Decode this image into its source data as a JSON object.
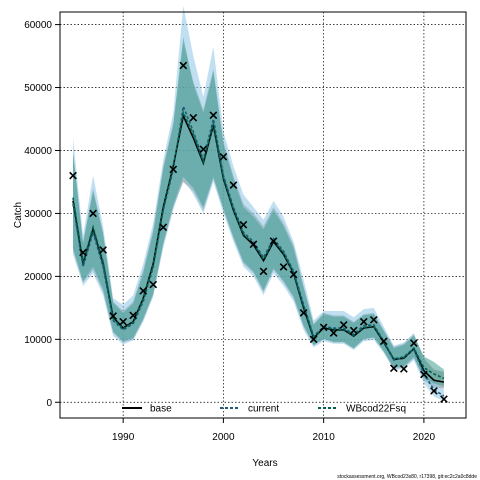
{
  "chart_data": {
    "type": "line",
    "xlabel": "Years",
    "ylabel": "Catch",
    "xlim": [
      1983.7,
      2024.2
    ],
    "ylim": [
      -2500,
      62000
    ],
    "xticks": [
      1990,
      2000,
      2010,
      2020
    ],
    "yticks": [
      0,
      10000,
      20000,
      30000,
      40000,
      50000,
      60000
    ],
    "grid": true,
    "legend_position": "bottom-center",
    "footnote": "stockassessment.org, WBcod23s80, r17398, git:ec2c2a0c8dde",
    "x": [
      1985,
      1986,
      1987,
      1988,
      1989,
      1990,
      1991,
      1992,
      1993,
      1994,
      1995,
      1996,
      1997,
      1998,
      1999,
      2000,
      2001,
      2002,
      2003,
      2004,
      2005,
      2006,
      2007,
      2008,
      2009,
      2010,
      2011,
      2012,
      2013,
      2014,
      2015,
      2016,
      2017,
      2018,
      2019,
      2020,
      2021,
      2022
    ],
    "observed": {
      "marker": "x",
      "x": [
        1985,
        1986,
        1987,
        1988,
        1989,
        1990,
        1991,
        1992,
        1993,
        1994,
        1995,
        1996,
        1997,
        1998,
        1999,
        2000,
        2001,
        2002,
        2003,
        2004,
        2005,
        2006,
        2007,
        2008,
        2009,
        2010,
        2011,
        2012,
        2013,
        2014,
        2015,
        2016,
        2017,
        2018,
        2019,
        2020,
        2021,
        2022
      ],
      "values": [
        36000,
        23800,
        30000,
        24200,
        13700,
        12800,
        13800,
        17700,
        18700,
        27800,
        37000,
        53500,
        45200,
        40200,
        45600,
        39000,
        34500,
        28200,
        25100,
        20800,
        25600,
        21500,
        20300,
        14200,
        10000,
        11900,
        11000,
        12300,
        11400,
        12800,
        13100,
        9700,
        5400,
        5300,
        9400,
        4400,
        1800,
        500
      ]
    },
    "series": [
      {
        "name": "base",
        "color": "#000000",
        "style": "solid",
        "band_color": "#808080",
        "values": [
          32000,
          22000,
          27500,
          22000,
          13500,
          11800,
          12800,
          16500,
          22000,
          31000,
          37500,
          45500,
          42000,
          38000,
          44000,
          35500,
          30500,
          26500,
          25000,
          22500,
          25500,
          23500,
          20500,
          15000,
          10200,
          11800,
          11500,
          11500,
          10500,
          11800,
          12000,
          9500,
          6800,
          7000,
          8500,
          5000,
          3500,
          3200
        ],
        "lower": [
          24000,
          19000,
          21000,
          17500,
          11000,
          9500,
          10000,
          13000,
          17000,
          25000,
          31000,
          35000,
          33500,
          30500,
          35500,
          30500,
          26000,
          22000,
          20500,
          17500,
          21000,
          19000,
          16500,
          12000,
          9000,
          10000,
          9500,
          9500,
          8500,
          10000,
          10200,
          8000,
          5300,
          5500,
          7000,
          3500,
          2300,
          2200
        ],
        "upper": [
          40000,
          25500,
          34000,
          27000,
          16000,
          14500,
          16000,
          21000,
          27500,
          37500,
          44500,
          57000,
          51000,
          46500,
          53000,
          41500,
          36000,
          31500,
          30000,
          28000,
          31000,
          28500,
          25000,
          18500,
          12500,
          14200,
          13800,
          13800,
          12800,
          14000,
          14200,
          11500,
          8800,
          9300,
          10800,
          7000,
          5200,
          4800
        ]
      },
      {
        "name": "current",
        "color": "#1f5c7a",
        "style": "dashed",
        "band_color": "#8cc7e6",
        "values": [
          31500,
          21500,
          27000,
          21500,
          13000,
          11500,
          12500,
          16000,
          21500,
          30500,
          37000,
          47000,
          43000,
          38500,
          45000,
          36000,
          31000,
          27000,
          25500,
          23000,
          26000,
          24000,
          20800,
          15500,
          10500,
          12000,
          11800,
          11800,
          10800,
          12200,
          12300,
          9700,
          6700,
          7100,
          8400,
          4500,
          2000,
          1000
        ],
        "lower": [
          23500,
          18500,
          20500,
          17000,
          10500,
          9200,
          9800,
          12800,
          16800,
          24500,
          30500,
          35500,
          33000,
          30000,
          35000,
          30000,
          25500,
          21500,
          20000,
          17000,
          20500,
          18500,
          16000,
          11500,
          8700,
          9700,
          9300,
          9300,
          8300,
          9700,
          9900,
          7800,
          5100,
          5300,
          6700,
          3000,
          900,
          200
        ],
        "upper": [
          42000,
          26500,
          36000,
          28000,
          16500,
          15500,
          17000,
          22000,
          28500,
          38500,
          46000,
          63000,
          55000,
          48500,
          56500,
          43000,
          37500,
          33000,
          31000,
          29000,
          32000,
          29500,
          25500,
          19500,
          13000,
          14500,
          14500,
          14500,
          13500,
          14800,
          15000,
          12000,
          9000,
          9500,
          11000,
          6500,
          3500,
          2000
        ]
      },
      {
        "name": "WBcod22Fsq",
        "color": "#00604a",
        "style": "dashed",
        "band_color": "#3f9f90",
        "values": [
          32500,
          22200,
          27800,
          22300,
          13300,
          11700,
          12700,
          16400,
          21800,
          30800,
          37300,
          46000,
          42500,
          38200,
          44300,
          35700,
          30700,
          26700,
          25200,
          22700,
          25700,
          23700,
          20600,
          15200,
          10300,
          11900,
          11600,
          11600,
          10600,
          11900,
          12100,
          9600,
          6900,
          7200,
          8600,
          5500,
          4500,
          3800
        ],
        "lower": [
          24500,
          19200,
          21500,
          18000,
          11200,
          9700,
          10200,
          13300,
          17300,
          25300,
          31300,
          35800,
          34000,
          31000,
          35800,
          30800,
          26300,
          22300,
          20800,
          17800,
          21300,
          19300,
          16800,
          12200,
          9100,
          10100,
          9600,
          9600,
          8600,
          10100,
          10300,
          8100,
          5500,
          5700,
          7200,
          3900,
          3000,
          2500
        ],
        "upper": [
          39500,
          25200,
          33500,
          26700,
          15800,
          14200,
          15700,
          20500,
          27000,
          37000,
          44000,
          58000,
          50500,
          46000,
          52500,
          41000,
          35500,
          31000,
          29500,
          27500,
          30500,
          28000,
          24500,
          18200,
          12300,
          14000,
          13600,
          13600,
          12600,
          13800,
          14000,
          11300,
          8600,
          9100,
          10600,
          7300,
          6400,
          5200
        ]
      }
    ]
  }
}
